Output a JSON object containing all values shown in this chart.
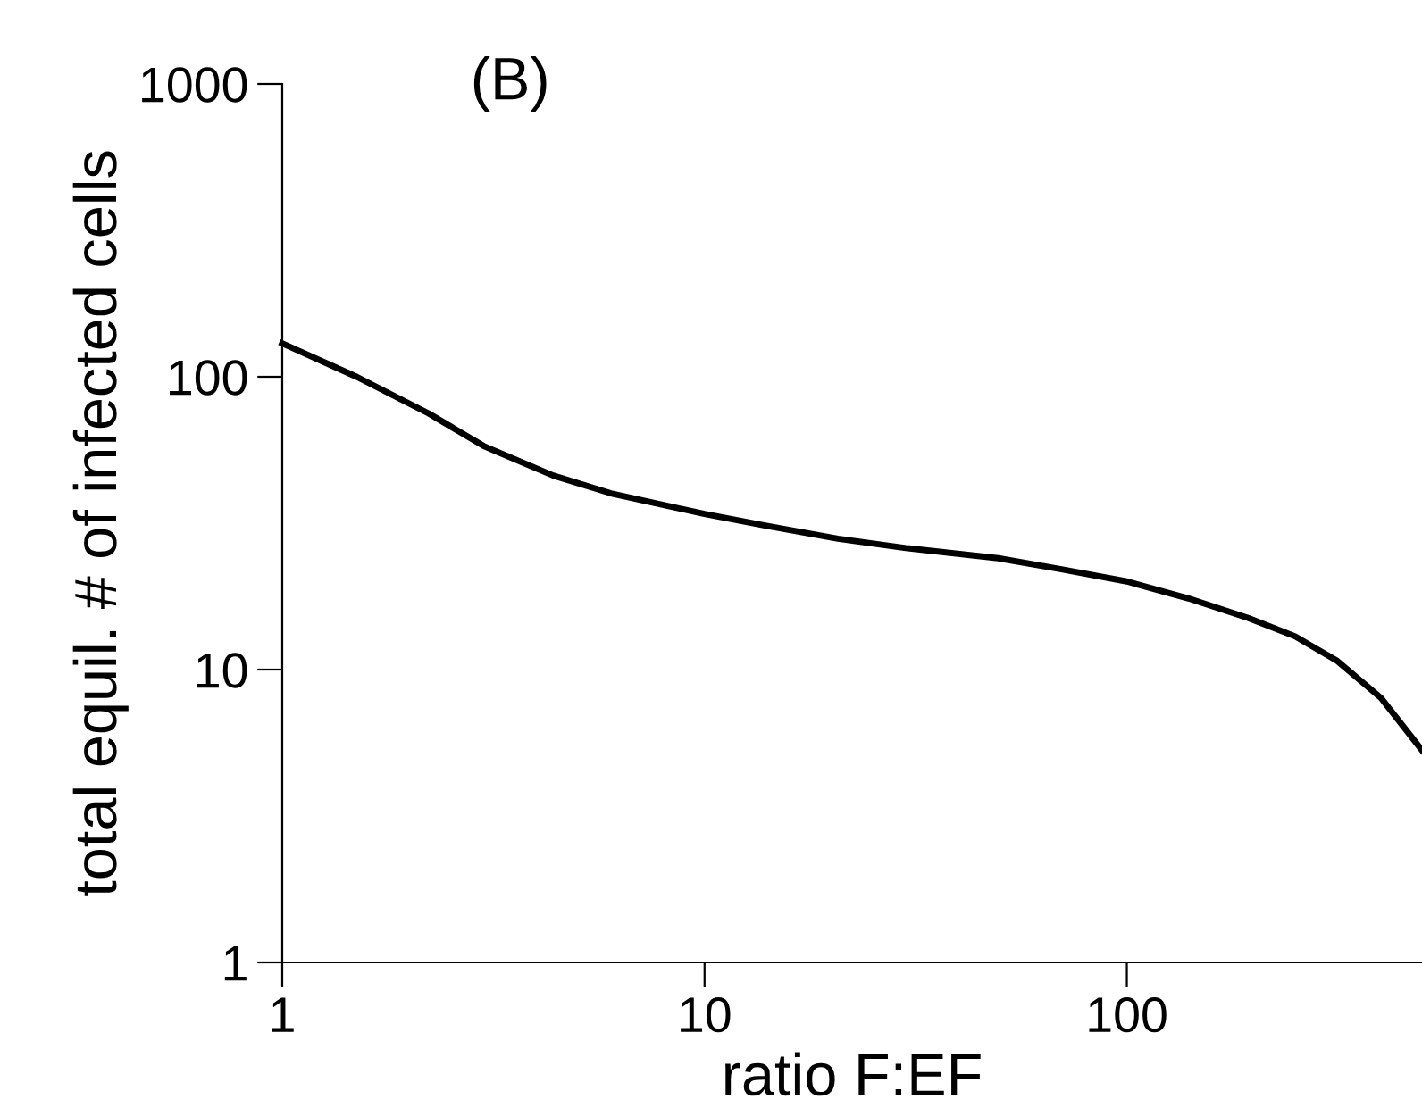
{
  "chart_data": {
    "type": "line",
    "title": "(B)",
    "xlabel": "ratio F:EF",
    "ylabel": "total equil. # of infected cells",
    "log": "xy",
    "xlim": [
      1,
      500
    ],
    "ylim": [
      1,
      1000
    ],
    "xticks": [
      1,
      10,
      100
    ],
    "yticks": [
      1,
      10,
      100,
      1000
    ],
    "grid": false,
    "legend": false,
    "marker": "none",
    "line_style": "solid",
    "series": [
      {
        "color": "#000000",
        "x": [
          1,
          1.5,
          2.22,
          3,
          4.38,
          6,
          10,
          14,
          20.7,
          30,
          49.6,
          70,
          100,
          140,
          194,
          250,
          315,
          400,
          500
        ],
        "values": [
          130,
          100,
          75,
          58,
          46,
          40,
          34,
          31,
          28,
          26,
          24,
          22,
          20,
          17.5,
          15,
          13,
          10.7,
          8,
          5.3
        ]
      }
    ]
  }
}
